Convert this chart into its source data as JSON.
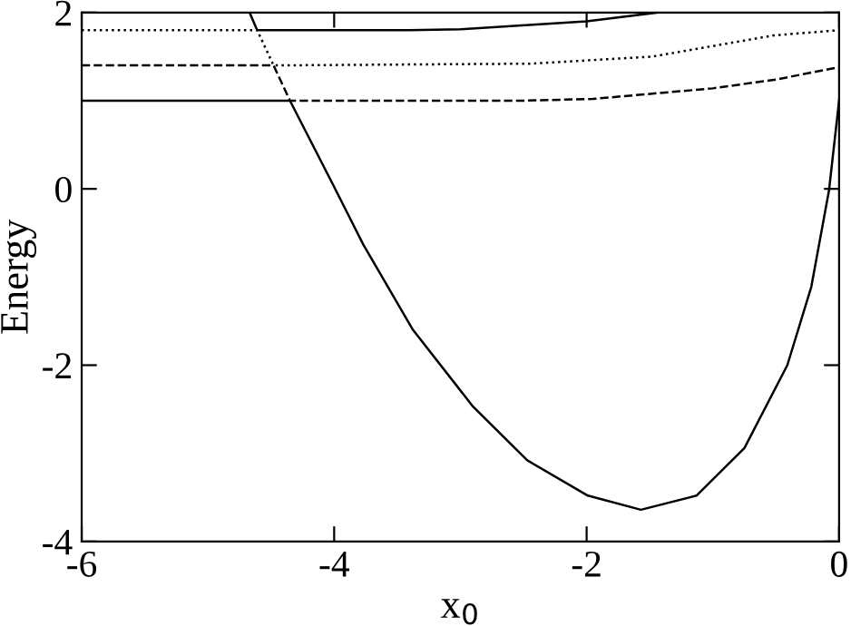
{
  "chart_data": {
    "type": "line",
    "xlabel": "x$_{0}$",
    "ylabel": "Energy",
    "xlim": [
      -6,
      0
    ],
    "ylim": [
      -4,
      2
    ],
    "xticks": [
      -6,
      -4,
      -2,
      0
    ],
    "yticks": [
      -4,
      -2,
      0,
      2
    ],
    "grid": false,
    "legend": false,
    "marker": "none",
    "series": [
      {
        "color": "#000000",
        "line_style": "solid",
        "x": [
          -6,
          -4.35,
          -4.01,
          -3.77,
          -3.38,
          -2.9,
          -2.47,
          -1.99,
          -1.57,
          -1.13,
          -0.75,
          -0.41,
          -0.22,
          -0.08,
          0
        ],
        "values": [
          1,
          1,
          0.05,
          -0.63,
          -1.59,
          -2.47,
          -3.08,
          -3.48,
          -3.64,
          -3.48,
          -2.94,
          -2.0,
          -1.11,
          -0.02,
          1.0
        ]
      },
      {
        "color": "#000000",
        "line_style": "dashed",
        "x": [
          -6,
          -4.48,
          -4.35,
          -2.5,
          -1.95,
          -1.0,
          -0.5,
          0
        ],
        "values": [
          1.4,
          1.4,
          1,
          1,
          1.02,
          1.14,
          1.24,
          1.38
        ]
      },
      {
        "color": "#000000",
        "line_style": "dotted",
        "x": [
          -6,
          -4.61,
          -4.48,
          -2.44,
          -1.48,
          -0.52,
          0
        ],
        "values": [
          1.8,
          1.8,
          1.4,
          1.42,
          1.5,
          1.74,
          1.8
        ]
      },
      {
        "color": "#000000",
        "line_style": "solid",
        "x": [
          -4.67,
          -4.61,
          -3.4,
          -3.0,
          -2.0,
          -1.44
        ],
        "values": [
          2,
          1.8,
          1.8,
          1.81,
          1.9,
          2
        ]
      }
    ]
  }
}
